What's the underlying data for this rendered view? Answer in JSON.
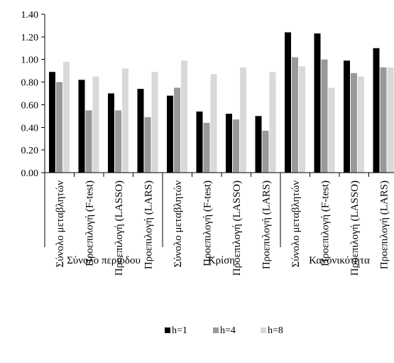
{
  "chart_data": {
    "type": "bar",
    "title": "",
    "xlabel": "",
    "ylabel": "",
    "ylim": [
      0,
      1.4
    ],
    "yticks": [
      "0.00",
      "0.20",
      "0.40",
      "0.60",
      "0.80",
      "1.00",
      "1.20",
      "1.40"
    ],
    "grid": false,
    "legend_position": "bottom",
    "groups": [
      {
        "label": "Σύνολο περιόδου",
        "categories": [
          "Σύνολο μεταβλητών",
          "Προεπιλογή (F-test)",
          "Προεπιλογή (LASSO)",
          "Προεπιλογή (LARS)"
        ]
      },
      {
        "label": "Κρίση",
        "categories": [
          "Σύνολο μεταβλητών",
          "Προεπιλογή (F-test)",
          "Προεπιλογή (LASSO)",
          "Προεπιλογή (LARS)"
        ]
      },
      {
        "label": "Κανονικότητα",
        "categories": [
          "Σύνολο μεταβλητών",
          "Προεπιλογή (F-test)",
          "Προεπιλογή (LASSO)",
          "Προεπιλογή (LARS)"
        ]
      }
    ],
    "series": [
      {
        "name": "h=1",
        "color": "#000000",
        "values": [
          0.89,
          0.82,
          0.7,
          0.74,
          0.68,
          0.54,
          0.52,
          0.5,
          1.24,
          1.23,
          0.99,
          1.1
        ]
      },
      {
        "name": "h=4",
        "color": "#999999",
        "values": [
          0.8,
          0.55,
          0.55,
          0.49,
          0.75,
          0.44,
          0.47,
          0.37,
          1.02,
          1.0,
          0.88,
          0.93
        ]
      },
      {
        "name": "h=8",
        "color": "#d9d9d9",
        "values": [
          0.98,
          0.85,
          0.92,
          0.89,
          0.99,
          0.87,
          0.93,
          0.89,
          0.94,
          0.75,
          0.85,
          0.93
        ]
      }
    ]
  }
}
